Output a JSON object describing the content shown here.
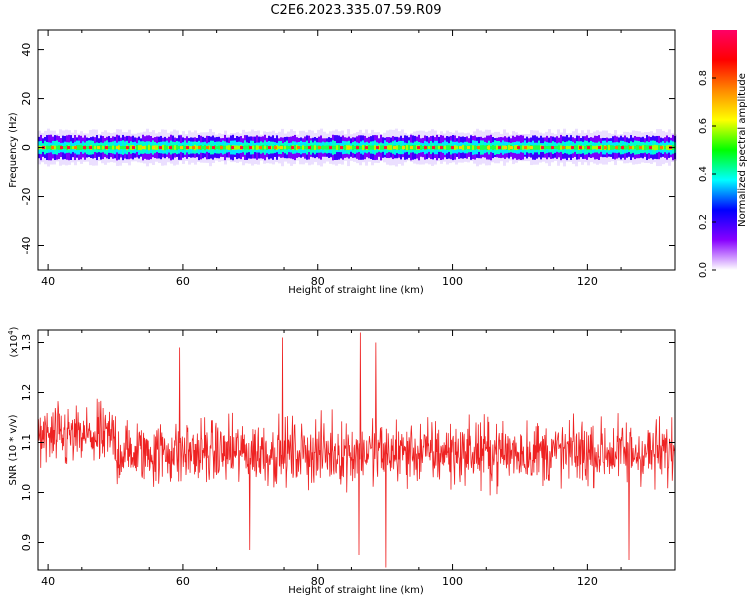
{
  "title": "C2E6.2023.335.07.59.R09",
  "chart_data": [
    {
      "type": "heatmap",
      "panel": "spectrogram",
      "xlabel": "Height of straight line (km)",
      "ylabel": "Frequency (Hz)",
      "xlim": [
        38.5,
        133
      ],
      "ylim": [
        -50,
        48
      ],
      "xticks": [
        40,
        60,
        80,
        100,
        120
      ],
      "yticks": [
        40,
        20,
        0,
        -20,
        -40
      ],
      "band_center_hz": 0,
      "band_halfwidth_hz": 5,
      "grid": false,
      "colorbar": {
        "label": "Normalized spectral amplitude",
        "range": [
          0.0,
          1.0
        ],
        "ticks": [
          0.0,
          0.2,
          0.4,
          0.6,
          0.8
        ],
        "colors": [
          "#ffffff",
          "#8800ff",
          "#0000ff",
          "#00ffff",
          "#00ff00",
          "#ffff00",
          "#ff8800",
          "#ff0000",
          "#ff0066"
        ]
      }
    },
    {
      "type": "line",
      "panel": "snr",
      "xlabel": "Height of straight line (km)",
      "ylabel": "SNR (10 * v/v)",
      "y_multiplier_label": "(x10",
      "y_multiplier_exp": "4",
      "y_multiplier_close": ")",
      "xlim": [
        38.5,
        133
      ],
      "ylim": [
        0.845,
        1.325
      ],
      "xticks": [
        40,
        60,
        80,
        100,
        120
      ],
      "yticks": [
        1.3,
        1.2,
        1.1,
        1.0,
        0.9
      ],
      "series": [
        {
          "color": "#ee2222",
          "mean": 1.08,
          "spread": 0.06,
          "points": 1400
        }
      ],
      "notable_peaks": [
        {
          "x": 59.5,
          "y": 1.29
        },
        {
          "x": 74.8,
          "y": 1.31
        },
        {
          "x": 86.3,
          "y": 1.32
        },
        {
          "x": 88.6,
          "y": 1.3
        },
        {
          "x": 69.9,
          "y": 0.885
        },
        {
          "x": 86.1,
          "y": 0.875
        },
        {
          "x": 90.1,
          "y": 0.85
        },
        {
          "x": 126.2,
          "y": 0.865
        }
      ]
    }
  ]
}
